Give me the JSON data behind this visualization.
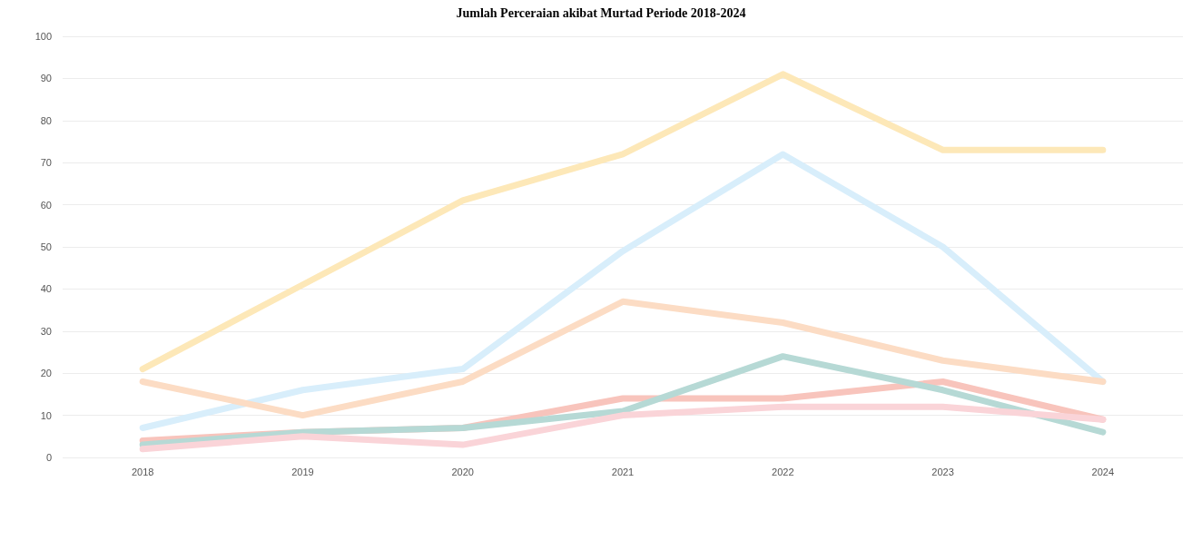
{
  "chart_data": {
    "type": "line",
    "title": "Jumlah Perceraian akibat Murtad Periode 2018-2024",
    "categories": [
      "2018",
      "2019",
      "2020",
      "2021",
      "2022",
      "2023",
      "2024"
    ],
    "series": [
      {
        "color": "#fde8b8",
        "values": [
          21,
          41,
          61,
          72,
          91,
          73,
          73
        ]
      },
      {
        "color": "#d8eefb",
        "values": [
          7,
          16,
          21,
          49,
          72,
          50,
          18
        ]
      },
      {
        "color": "#fcdcc4",
        "values": [
          18,
          10,
          18,
          37,
          32,
          23,
          18
        ]
      },
      {
        "color": "#f8c4bc",
        "values": [
          4,
          6,
          7,
          14,
          14,
          18,
          9
        ]
      },
      {
        "color": "#b6d9d5",
        "values": [
          3,
          6,
          7,
          11,
          24,
          16,
          6
        ]
      },
      {
        "color": "#fad4d8",
        "values": [
          2,
          5,
          3,
          10,
          12,
          12,
          9
        ]
      }
    ],
    "ylim": [
      0,
      100
    ],
    "yticks": [
      0,
      10,
      20,
      30,
      40,
      50,
      60,
      70,
      80,
      90,
      100
    ],
    "grid": "y",
    "marker": "none",
    "line_style": "solid"
  }
}
